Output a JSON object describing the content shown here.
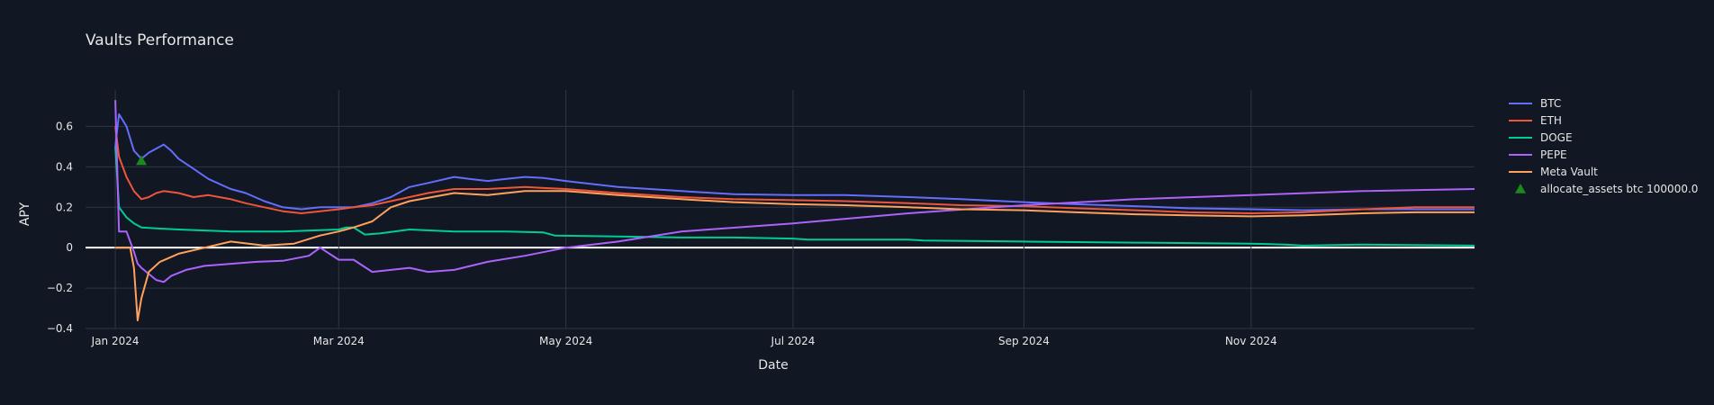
{
  "chart_data": {
    "type": "line",
    "title": "Vaults Performance",
    "xlabel": "Date",
    "ylabel": "APY",
    "x_range": [
      "2023-12-24",
      "2024-12-31"
    ],
    "ylim": [
      -0.4,
      0.78
    ],
    "y_ticks": [
      -0.4,
      -0.2,
      0,
      0.2,
      0.4,
      0.6
    ],
    "y_tick_labels": [
      "−0.4",
      "−0.2",
      "0",
      "0.2",
      "0.4",
      "0.6"
    ],
    "x_ticks": [
      "2024-01-01",
      "2024-03-01",
      "2024-05-01",
      "2024-07-01",
      "2024-09-01",
      "2024-11-01"
    ],
    "x_tick_labels": [
      "Jan 2024",
      "Mar 2024",
      "May 2024",
      "Jul 2024",
      "Sep 2024",
      "Nov 2024"
    ],
    "grid": true,
    "legend_position": "right",
    "series": [
      {
        "name": "BTC",
        "color": "#636efa",
        "points": [
          [
            "2024-01-01",
            0.5
          ],
          [
            "2024-01-02",
            0.66
          ],
          [
            "2024-01-04",
            0.6
          ],
          [
            "2024-01-06",
            0.48
          ],
          [
            "2024-01-08",
            0.44
          ],
          [
            "2024-01-10",
            0.47
          ],
          [
            "2024-01-12",
            0.49
          ],
          [
            "2024-01-14",
            0.51
          ],
          [
            "2024-01-16",
            0.48
          ],
          [
            "2024-01-18",
            0.44
          ],
          [
            "2024-01-22",
            0.39
          ],
          [
            "2024-01-26",
            0.34
          ],
          [
            "2024-02-01",
            0.29
          ],
          [
            "2024-02-05",
            0.27
          ],
          [
            "2024-02-10",
            0.23
          ],
          [
            "2024-02-15",
            0.2
          ],
          [
            "2024-02-20",
            0.19
          ],
          [
            "2024-02-25",
            0.2
          ],
          [
            "2024-03-01",
            0.2
          ],
          [
            "2024-03-05",
            0.2
          ],
          [
            "2024-03-10",
            0.22
          ],
          [
            "2024-03-15",
            0.25
          ],
          [
            "2024-03-20",
            0.3
          ],
          [
            "2024-03-25",
            0.32
          ],
          [
            "2024-04-01",
            0.35
          ],
          [
            "2024-04-05",
            0.34
          ],
          [
            "2024-04-10",
            0.33
          ],
          [
            "2024-04-15",
            0.34
          ],
          [
            "2024-04-20",
            0.35
          ],
          [
            "2024-04-25",
            0.345
          ],
          [
            "2024-05-01",
            0.33
          ],
          [
            "2024-05-15",
            0.3
          ],
          [
            "2024-06-01",
            0.28
          ],
          [
            "2024-06-15",
            0.265
          ],
          [
            "2024-07-01",
            0.26
          ],
          [
            "2024-07-15",
            0.26
          ],
          [
            "2024-08-01",
            0.25
          ],
          [
            "2024-08-15",
            0.24
          ],
          [
            "2024-09-01",
            0.225
          ],
          [
            "2024-09-15",
            0.215
          ],
          [
            "2024-10-01",
            0.205
          ],
          [
            "2024-10-15",
            0.195
          ],
          [
            "2024-11-01",
            0.19
          ],
          [
            "2024-11-15",
            0.185
          ],
          [
            "2024-12-01",
            0.19
          ],
          [
            "2024-12-15",
            0.19
          ],
          [
            "2024-12-31",
            0.19
          ]
        ]
      },
      {
        "name": "ETH",
        "color": "#ef553b",
        "points": [
          [
            "2024-01-01",
            0.6
          ],
          [
            "2024-01-02",
            0.45
          ],
          [
            "2024-01-04",
            0.35
          ],
          [
            "2024-01-06",
            0.28
          ],
          [
            "2024-01-08",
            0.24
          ],
          [
            "2024-01-10",
            0.25
          ],
          [
            "2024-01-12",
            0.27
          ],
          [
            "2024-01-14",
            0.28
          ],
          [
            "2024-01-18",
            0.27
          ],
          [
            "2024-01-22",
            0.25
          ],
          [
            "2024-01-26",
            0.26
          ],
          [
            "2024-02-01",
            0.24
          ],
          [
            "2024-02-05",
            0.22
          ],
          [
            "2024-02-10",
            0.2
          ],
          [
            "2024-02-15",
            0.18
          ],
          [
            "2024-02-20",
            0.17
          ],
          [
            "2024-02-25",
            0.18
          ],
          [
            "2024-03-01",
            0.19
          ],
          [
            "2024-03-05",
            0.2
          ],
          [
            "2024-03-10",
            0.21
          ],
          [
            "2024-03-15",
            0.23
          ],
          [
            "2024-03-20",
            0.25
          ],
          [
            "2024-03-25",
            0.27
          ],
          [
            "2024-04-01",
            0.29
          ],
          [
            "2024-04-05",
            0.29
          ],
          [
            "2024-04-10",
            0.29
          ],
          [
            "2024-04-15",
            0.295
          ],
          [
            "2024-04-20",
            0.3
          ],
          [
            "2024-04-25",
            0.295
          ],
          [
            "2024-05-01",
            0.29
          ],
          [
            "2024-05-15",
            0.27
          ],
          [
            "2024-06-01",
            0.25
          ],
          [
            "2024-06-15",
            0.24
          ],
          [
            "2024-07-01",
            0.235
          ],
          [
            "2024-07-15",
            0.23
          ],
          [
            "2024-08-01",
            0.22
          ],
          [
            "2024-08-15",
            0.21
          ],
          [
            "2024-09-01",
            0.205
          ],
          [
            "2024-09-15",
            0.195
          ],
          [
            "2024-10-01",
            0.185
          ],
          [
            "2024-10-15",
            0.175
          ],
          [
            "2024-11-01",
            0.17
          ],
          [
            "2024-11-15",
            0.175
          ],
          [
            "2024-12-01",
            0.19
          ],
          [
            "2024-12-15",
            0.2
          ],
          [
            "2024-12-31",
            0.2
          ]
        ]
      },
      {
        "name": "DOGE",
        "color": "#00cc96",
        "points": [
          [
            "2024-01-01",
            0.5
          ],
          [
            "2024-01-02",
            0.2
          ],
          [
            "2024-01-04",
            0.15
          ],
          [
            "2024-01-06",
            0.12
          ],
          [
            "2024-01-08",
            0.1
          ],
          [
            "2024-01-12",
            0.095
          ],
          [
            "2024-01-18",
            0.09
          ],
          [
            "2024-01-25",
            0.085
          ],
          [
            "2024-02-01",
            0.08
          ],
          [
            "2024-02-15",
            0.08
          ],
          [
            "2024-03-01",
            0.09
          ],
          [
            "2024-03-03",
            0.1
          ],
          [
            "2024-03-05",
            0.1
          ],
          [
            "2024-03-08",
            0.065
          ],
          [
            "2024-03-12",
            0.07
          ],
          [
            "2024-03-20",
            0.09
          ],
          [
            "2024-04-01",
            0.08
          ],
          [
            "2024-04-15",
            0.08
          ],
          [
            "2024-04-25",
            0.075
          ],
          [
            "2024-04-28",
            0.06
          ],
          [
            "2024-05-15",
            0.055
          ],
          [
            "2024-06-01",
            0.05
          ],
          [
            "2024-06-15",
            0.05
          ],
          [
            "2024-07-01",
            0.045
          ],
          [
            "2024-07-05",
            0.04
          ],
          [
            "2024-08-01",
            0.04
          ],
          [
            "2024-08-05",
            0.035
          ],
          [
            "2024-09-01",
            0.03
          ],
          [
            "2024-10-01",
            0.025
          ],
          [
            "2024-11-01",
            0.02
          ],
          [
            "2024-11-10",
            0.015
          ],
          [
            "2024-11-15",
            0.01
          ],
          [
            "2024-12-01",
            0.015
          ],
          [
            "2024-12-31",
            0.01
          ]
        ]
      },
      {
        "name": "PEPE",
        "color": "#ab63fa",
        "points": [
          [
            "2024-01-01",
            0.73
          ],
          [
            "2024-01-02",
            0.08
          ],
          [
            "2024-01-04",
            0.08
          ],
          [
            "2024-01-06",
            -0.02
          ],
          [
            "2024-01-07",
            -0.08
          ],
          [
            "2024-01-08",
            -0.1
          ],
          [
            "2024-01-10",
            -0.13
          ],
          [
            "2024-01-12",
            -0.16
          ],
          [
            "2024-01-14",
            -0.17
          ],
          [
            "2024-01-16",
            -0.14
          ],
          [
            "2024-01-20",
            -0.11
          ],
          [
            "2024-01-25",
            -0.09
          ],
          [
            "2024-02-01",
            -0.08
          ],
          [
            "2024-02-08",
            -0.07
          ],
          [
            "2024-02-15",
            -0.065
          ],
          [
            "2024-02-22",
            -0.04
          ],
          [
            "2024-02-25",
            0.0
          ],
          [
            "2024-03-01",
            -0.06
          ],
          [
            "2024-03-05",
            -0.06
          ],
          [
            "2024-03-10",
            -0.12
          ],
          [
            "2024-03-15",
            -0.11
          ],
          [
            "2024-03-20",
            -0.1
          ],
          [
            "2024-03-25",
            -0.12
          ],
          [
            "2024-04-01",
            -0.11
          ],
          [
            "2024-04-10",
            -0.07
          ],
          [
            "2024-04-20",
            -0.04
          ],
          [
            "2024-05-01",
            0.0
          ],
          [
            "2024-05-15",
            0.03
          ],
          [
            "2024-06-01",
            0.08
          ],
          [
            "2024-07-01",
            0.12
          ],
          [
            "2024-08-01",
            0.17
          ],
          [
            "2024-09-01",
            0.21
          ],
          [
            "2024-10-01",
            0.24
          ],
          [
            "2024-11-01",
            0.26
          ],
          [
            "2024-12-01",
            0.28
          ],
          [
            "2024-12-31",
            0.29
          ]
        ]
      },
      {
        "name": "Meta Vault",
        "color": "#ffa15a",
        "points": [
          [
            "2024-01-01",
            0.0
          ],
          [
            "2024-01-05",
            0.0
          ],
          [
            "2024-01-06",
            -0.1
          ],
          [
            "2024-01-07",
            -0.36
          ],
          [
            "2024-01-08",
            -0.25
          ],
          [
            "2024-01-10",
            -0.12
          ],
          [
            "2024-01-13",
            -0.07
          ],
          [
            "2024-01-18",
            -0.03
          ],
          [
            "2024-01-25",
            0.0
          ],
          [
            "2024-02-01",
            0.03
          ],
          [
            "2024-02-10",
            0.01
          ],
          [
            "2024-02-18",
            0.02
          ],
          [
            "2024-02-25",
            0.06
          ],
          [
            "2024-03-01",
            0.08
          ],
          [
            "2024-03-05",
            0.1
          ],
          [
            "2024-03-10",
            0.13
          ],
          [
            "2024-03-15",
            0.2
          ],
          [
            "2024-03-20",
            0.23
          ],
          [
            "2024-04-01",
            0.27
          ],
          [
            "2024-04-10",
            0.26
          ],
          [
            "2024-04-20",
            0.28
          ],
          [
            "2024-05-01",
            0.28
          ],
          [
            "2024-05-15",
            0.26
          ],
          [
            "2024-06-01",
            0.24
          ],
          [
            "2024-06-15",
            0.225
          ],
          [
            "2024-07-01",
            0.215
          ],
          [
            "2024-07-15",
            0.21
          ],
          [
            "2024-08-01",
            0.2
          ],
          [
            "2024-08-15",
            0.19
          ],
          [
            "2024-09-01",
            0.185
          ],
          [
            "2024-09-15",
            0.175
          ],
          [
            "2024-10-01",
            0.165
          ],
          [
            "2024-10-15",
            0.16
          ],
          [
            "2024-11-01",
            0.155
          ],
          [
            "2024-11-15",
            0.16
          ],
          [
            "2024-12-01",
            0.17
          ],
          [
            "2024-12-15",
            0.175
          ],
          [
            "2024-12-31",
            0.175
          ]
        ]
      }
    ],
    "markers": [
      {
        "name": "allocate_assets btc 100000.0",
        "color": "#1a8a1a",
        "symbol": "triangle-up",
        "x": "2024-01-08",
        "y": 0.43
      }
    ]
  }
}
